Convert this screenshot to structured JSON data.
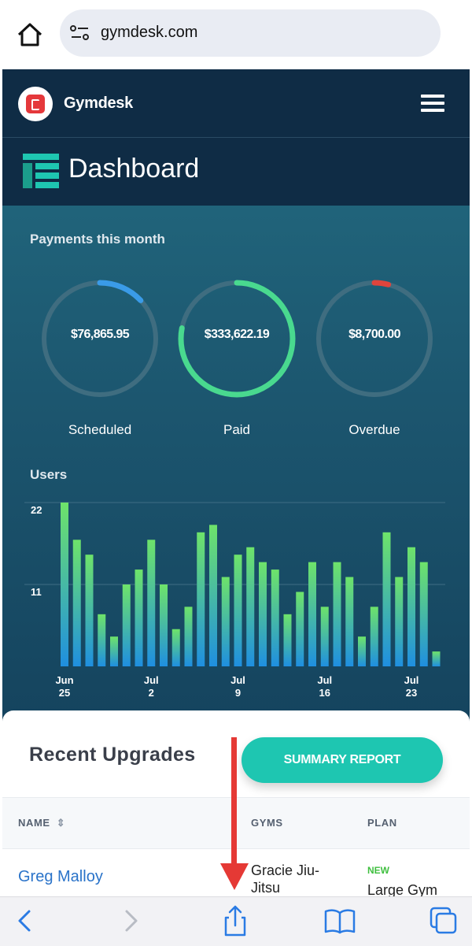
{
  "browser": {
    "url": "gymdesk.com"
  },
  "app": {
    "brand": "Gymdesk",
    "page_title": "Dashboard",
    "payments": {
      "heading": "Payments this month",
      "items": [
        {
          "value": "$76,865.95",
          "label": "Scheduled",
          "fraction": 0.13,
          "color": "#3a9be8"
        },
        {
          "value": "$333,622.19",
          "label": "Paid",
          "fraction": 0.78,
          "color": "#49d98f"
        },
        {
          "value": "$8,700.00",
          "label": "Overdue",
          "fraction": 0.04,
          "color": "#e0443c"
        }
      ]
    },
    "users_heading": "Users"
  },
  "chart_data": {
    "type": "bar",
    "title": "Users",
    "yticks": [
      "22",
      "11"
    ],
    "ylim": [
      0,
      22
    ],
    "x_ticks": [
      {
        "month": "Jun",
        "day": "25",
        "index": 0
      },
      {
        "month": "Jul",
        "day": "2",
        "index": 7
      },
      {
        "month": "Jul",
        "day": "9",
        "index": 14
      },
      {
        "month": "Jul",
        "day": "16",
        "index": 21
      },
      {
        "month": "Jul",
        "day": "23",
        "index": 28
      }
    ],
    "values": [
      22,
      17,
      15,
      7,
      4,
      11,
      13,
      17,
      11,
      5,
      8,
      18,
      19,
      12,
      15,
      16,
      14,
      13,
      7,
      10,
      14,
      8,
      14,
      12,
      4,
      8,
      18,
      12,
      16,
      14,
      2
    ],
    "grid": true,
    "colors": {
      "top": "#6ee36a",
      "bottom": "#1f8fe0"
    }
  },
  "card": {
    "title": "Recent Upgrades",
    "button": "SUMMARY REPORT",
    "columns": [
      "NAME",
      "GYMS",
      "PLAN"
    ],
    "rows": [
      {
        "name": "Greg Malloy",
        "gym": "Gracie Jiu-Jitsu",
        "badge": "NEW",
        "plan": "Large Gym"
      }
    ]
  },
  "colors": {
    "accent": "#1ec6b1",
    "annotation": "#e53935"
  }
}
